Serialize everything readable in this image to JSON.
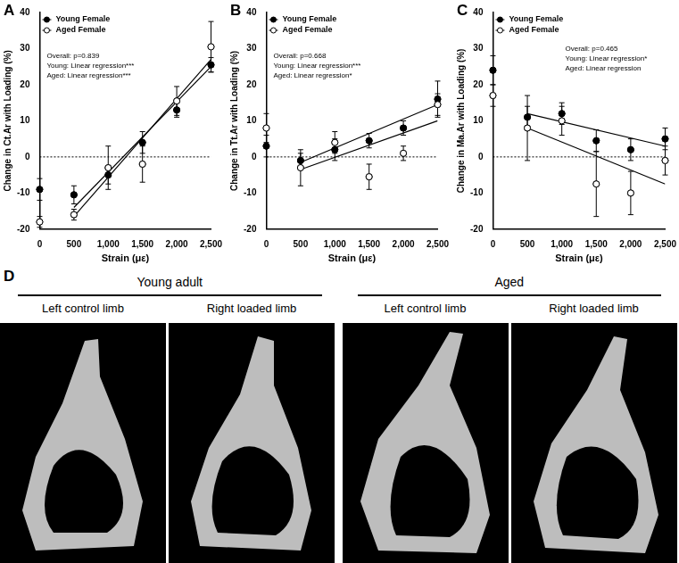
{
  "chart_data": [
    {
      "type": "scatter",
      "label": "A",
      "x_label": "Strain (με)",
      "y_label": "Change in Ct.Ar with Loading (%)",
      "x": [
        0,
        500,
        1000,
        1500,
        2000,
        2500
      ],
      "xlim": [
        0,
        2500
      ],
      "xticks": [
        0,
        500,
        1000,
        1500,
        2000,
        2500
      ],
      "ylim": [
        -20,
        40
      ],
      "yticks": [
        -20,
        -10,
        0,
        10,
        20,
        30,
        40
      ],
      "grid": false,
      "legend": "upper left",
      "reference_y": 0,
      "annotations": [
        "Overall: p=0.839",
        "Young: Linear regression***",
        "Aged: Linear regression***"
      ],
      "series": [
        {
          "name": "Young Female",
          "color": "#000000",
          "marker": "circle",
          "values": [
            -9,
            -10.5,
            -5,
            4,
            13,
            25.5
          ],
          "errors": [
            3,
            2.5,
            2.5,
            3,
            2,
            2
          ],
          "fit": {
            "x": [
              500,
              2500
            ],
            "values": [
              -14,
              25
            ]
          }
        },
        {
          "name": "Aged Female",
          "color": "#000000",
          "marker": "open circle",
          "values": [
            -18,
            -16,
            -3,
            -2,
            15.5,
            30.5
          ],
          "errors": [
            1.5,
            1.5,
            6,
            5,
            4,
            7
          ],
          "fit": {
            "x": [
              500,
              2500
            ],
            "values": [
              -16.5,
              27
            ]
          }
        }
      ]
    },
    {
      "type": "scatter",
      "label": "B",
      "x_label": "Strain (με)",
      "y_label": "Change in Tt.Ar with Loading (%)",
      "x": [
        0,
        500,
        1000,
        1500,
        2000,
        2500
      ],
      "xlim": [
        0,
        2500
      ],
      "xticks": [
        0,
        500,
        1000,
        1500,
        2000,
        2500
      ],
      "ylim": [
        -20,
        40
      ],
      "yticks": [
        -20,
        -10,
        0,
        10,
        20,
        30,
        40
      ],
      "grid": false,
      "legend": "upper left",
      "reference_y": 0,
      "annotations": [
        "Overall: p=0.668",
        "Young: Linear regression***",
        "Aged: Linear regression*"
      ],
      "series": [
        {
          "name": "Young Female",
          "color": "#000000",
          "marker": "circle",
          "values": [
            3,
            -1,
            2,
            4.5,
            8,
            16
          ],
          "errors": [
            3,
            2,
            3,
            2,
            2,
            5
          ],
          "fit": {
            "x": [
              500,
              2500
            ],
            "values": [
              -1.5,
              14.5
            ]
          }
        },
        {
          "name": "Aged Female",
          "color": "#000000",
          "marker": "open circle",
          "values": [
            8,
            -3,
            4,
            -5.5,
            1,
            14.5
          ],
          "errors": [
            4,
            5,
            3,
            3.5,
            2,
            3
          ],
          "fit": {
            "x": [
              500,
              2500
            ],
            "values": [
              -3.5,
              10
            ]
          }
        }
      ]
    },
    {
      "type": "scatter",
      "label": "C",
      "x_label": "Strain (με)",
      "y_label": "Change in Ma.Ar with Loading (%)",
      "x": [
        0,
        500,
        1000,
        1500,
        2000,
        2500
      ],
      "xlim": [
        0,
        2500
      ],
      "xticks": [
        0,
        500,
        1000,
        1500,
        2000,
        2500
      ],
      "ylim": [
        -20,
        40
      ],
      "yticks": [
        -20,
        -10,
        0,
        10,
        20,
        30,
        40
      ],
      "grid": false,
      "legend": "upper left",
      "reference_y": 0,
      "annotations": [
        "Overall: p=0.465",
        "Young: Linear regression*",
        "Aged: Linear regression"
      ],
      "series": [
        {
          "name": "Young Female",
          "color": "#000000",
          "marker": "circle",
          "values": [
            24,
            11,
            12,
            4.5,
            2,
            5
          ],
          "errors": [
            4,
            3,
            3,
            3,
            3,
            3
          ],
          "fit": {
            "x": [
              500,
              2500
            ],
            "values": [
              12,
              3
            ]
          }
        },
        {
          "name": "Aged Female",
          "color": "#000000",
          "marker": "open circle",
          "values": [
            17,
            8,
            10,
            -7.5,
            -10,
            -1
          ],
          "errors": [
            3,
            9,
            4,
            9,
            6,
            4
          ],
          "fit": {
            "x": [
              500,
              2500
            ],
            "values": [
              8,
              -7.5
            ]
          }
        }
      ]
    }
  ],
  "image_panel": {
    "label": "D",
    "groups": [
      {
        "title": "Young adult",
        "limbs": [
          "Left control limb",
          "Right loaded limb"
        ]
      },
      {
        "title": "Aged",
        "limbs": [
          "Left control limb",
          "Right loaded limb"
        ]
      }
    ]
  }
}
